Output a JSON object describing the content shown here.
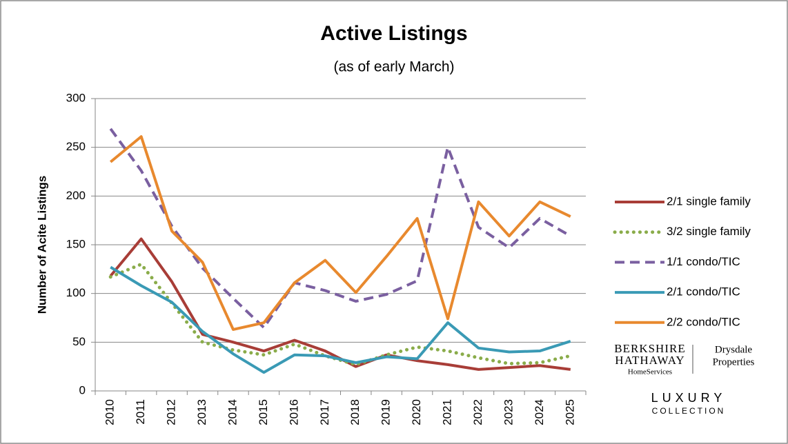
{
  "chart_data": {
    "type": "line",
    "title": "Active Listings",
    "subtitle": "(as of early March)",
    "y_label": "Number of Acite Listings",
    "categories": [
      "2010",
      "2011",
      "2012",
      "2013",
      "2014",
      "2015",
      "2016",
      "2017",
      "2018",
      "2019",
      "2020",
      "2021",
      "2022",
      "2023",
      "2024",
      "2025"
    ],
    "series": [
      {
        "name": "2/1 single family",
        "color": "#a83d37",
        "style": "solid",
        "values": [
          118,
          156,
          112,
          58,
          50,
          41,
          52,
          41,
          25,
          37,
          31,
          27,
          22,
          24,
          26,
          22
        ]
      },
      {
        "name": "3/2 single family",
        "color": "#8aac4a",
        "style": "dotted",
        "values": [
          117,
          130,
          90,
          50,
          42,
          37,
          48,
          36,
          27,
          37,
          45,
          41,
          34,
          28,
          29,
          36
        ]
      },
      {
        "name": "1/1 condo/TIC",
        "color": "#7a5fa0",
        "style": "dashed",
        "values": [
          269,
          226,
          169,
          126,
          95,
          65,
          111,
          103,
          92,
          99,
          113,
          250,
          168,
          147,
          177,
          159
        ]
      },
      {
        "name": "2/1 condo/TIC",
        "color": "#3a9ab5",
        "style": "solid",
        "values": [
          127,
          108,
          91,
          61,
          38,
          19,
          37,
          36,
          29,
          35,
          33,
          70,
          44,
          40,
          41,
          51
        ]
      },
      {
        "name": "2/2 condo/TIC",
        "color": "#e8892e",
        "style": "solid",
        "values": [
          235,
          261,
          164,
          132,
          63,
          70,
          111,
          134,
          101,
          138,
          177,
          74,
          194,
          159,
          194,
          179
        ]
      }
    ],
    "ylim": [
      0,
      300
    ],
    "yticks": [
      0,
      50,
      100,
      150,
      200,
      250,
      300
    ],
    "grid": true,
    "legend": "right",
    "logo": {
      "brand_top": "BERKSHIRE",
      "brand_mid": "HATHAWAY",
      "brand_sub": "HomeServices",
      "partner_top": "Drysdale",
      "partner_bottom": "Properties",
      "collection_top": "LUXURY",
      "collection_bottom": "COLLECTION"
    }
  }
}
